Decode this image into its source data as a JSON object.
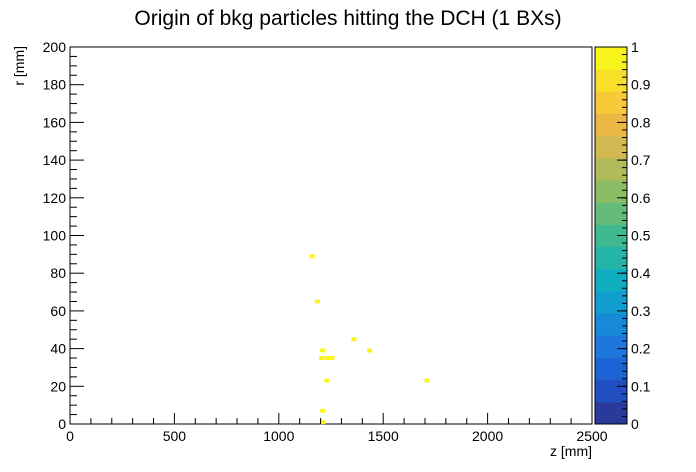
{
  "chart_data": {
    "type": "heatmap",
    "title": "Origin of bkg particles hitting the DCH (1 BXs)",
    "xlabel": "z [mm]",
    "ylabel": "r [mm]",
    "xlim": [
      0,
      2500
    ],
    "ylim": [
      0,
      200
    ],
    "x_ticks": [
      0,
      500,
      1000,
      1500,
      2000,
      2500
    ],
    "y_ticks": [
      0,
      20,
      40,
      60,
      80,
      100,
      120,
      140,
      160,
      180,
      200
    ],
    "colorbar": {
      "range": [
        0,
        1
      ],
      "ticks": [
        "0",
        "0.1",
        "0.2",
        "0.3",
        "0.4",
        "0.5",
        "0.6",
        "0.7",
        "0.8",
        "0.9",
        "1"
      ],
      "palette": [
        "#2a3a9a",
        "#1f4fc0",
        "#1e63d6",
        "#1d77dd",
        "#168ad8",
        "#0f9ecf",
        "#11adc0",
        "#25b5a8",
        "#3fba90",
        "#64bc78",
        "#8bbd66",
        "#b0bb5a",
        "#d2b84f",
        "#ebb943",
        "#f7c838",
        "#f8e02a",
        "#f9f51c"
      ]
    },
    "bins": [
      {
        "z": 1160,
        "r": 89,
        "value": 1
      },
      {
        "z": 1185,
        "r": 65,
        "value": 1
      },
      {
        "z": 1360,
        "r": 45,
        "value": 1
      },
      {
        "z": 1435,
        "r": 39,
        "value": 1
      },
      {
        "z": 1210,
        "r": 39,
        "value": 1
      },
      {
        "z": 1205,
        "r": 35,
        "value": 1
      },
      {
        "z": 1230,
        "r": 35,
        "value": 1
      },
      {
        "z": 1255,
        "r": 35,
        "value": 1
      },
      {
        "z": 1230,
        "r": 23,
        "value": 1
      },
      {
        "z": 1710,
        "r": 23,
        "value": 1
      },
      {
        "z": 1210,
        "r": 7,
        "value": 1
      },
      {
        "z": 1210,
        "r": 1,
        "value": 1
      }
    ]
  }
}
